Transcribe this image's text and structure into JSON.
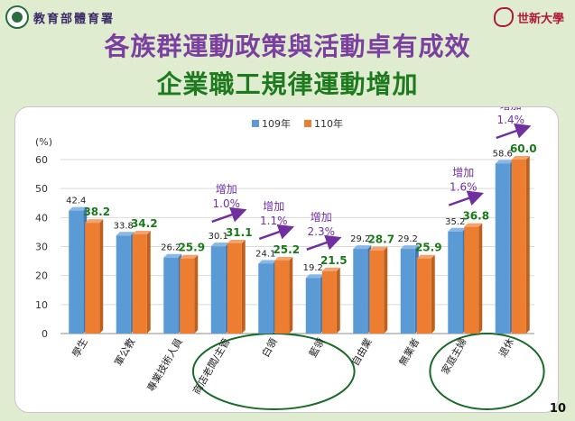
{
  "header": {
    "left_logo_text": "教育部體育署",
    "right_logo_text": "世新大學"
  },
  "slide": {
    "title_line1": "各族群運動政策與活動卓有成效",
    "title_line2": "企業職工規律運動增加",
    "page_number": "10"
  },
  "colors": {
    "series_109": "#5b9bd5",
    "series_110": "#ed7d31",
    "label_110": "#1a7a1a",
    "annotation": "#7030a0",
    "ellipse": "#1a6b2a",
    "background": "#dfeccf"
  },
  "chart_data": {
    "type": "bar",
    "unit_label": "(%)",
    "ylim": [
      0,
      60
    ],
    "yticks": [
      0,
      10,
      20,
      30,
      40,
      50,
      60
    ],
    "grid": true,
    "legend_position": "top-center",
    "categories": [
      "學生",
      "軍公教",
      "專業技術人員",
      "商店老闆/主管",
      "白領",
      "藍領",
      "自由業",
      "無業者",
      "家庭主婦",
      "退休"
    ],
    "series": [
      {
        "name": "109年",
        "values": [
          42.4,
          33.8,
          26.2,
          30.1,
          24.1,
          19.2,
          29.2,
          29.2,
          35.2,
          58.6
        ]
      },
      {
        "name": "110年",
        "values": [
          38.2,
          34.2,
          25.9,
          31.1,
          25.2,
          21.5,
          28.7,
          25.9,
          36.8,
          60.0
        ]
      }
    ],
    "annotations": [
      {
        "category": "商店老闆/主管",
        "line1": "增加",
        "line2": "1.0%"
      },
      {
        "category": "白領",
        "line1": "增加",
        "line2": "1.1%"
      },
      {
        "category": "藍領",
        "line1": "增加",
        "line2": "2.3%"
      },
      {
        "category": "家庭主婦",
        "line1": "增加",
        "line2": "1.6%"
      },
      {
        "category": "退休",
        "line1": "增加",
        "line2": "1.4%"
      }
    ],
    "highlight_groups": [
      [
        "商店老闆/主管",
        "白領",
        "藍領"
      ],
      [
        "家庭主婦",
        "退休"
      ]
    ]
  }
}
